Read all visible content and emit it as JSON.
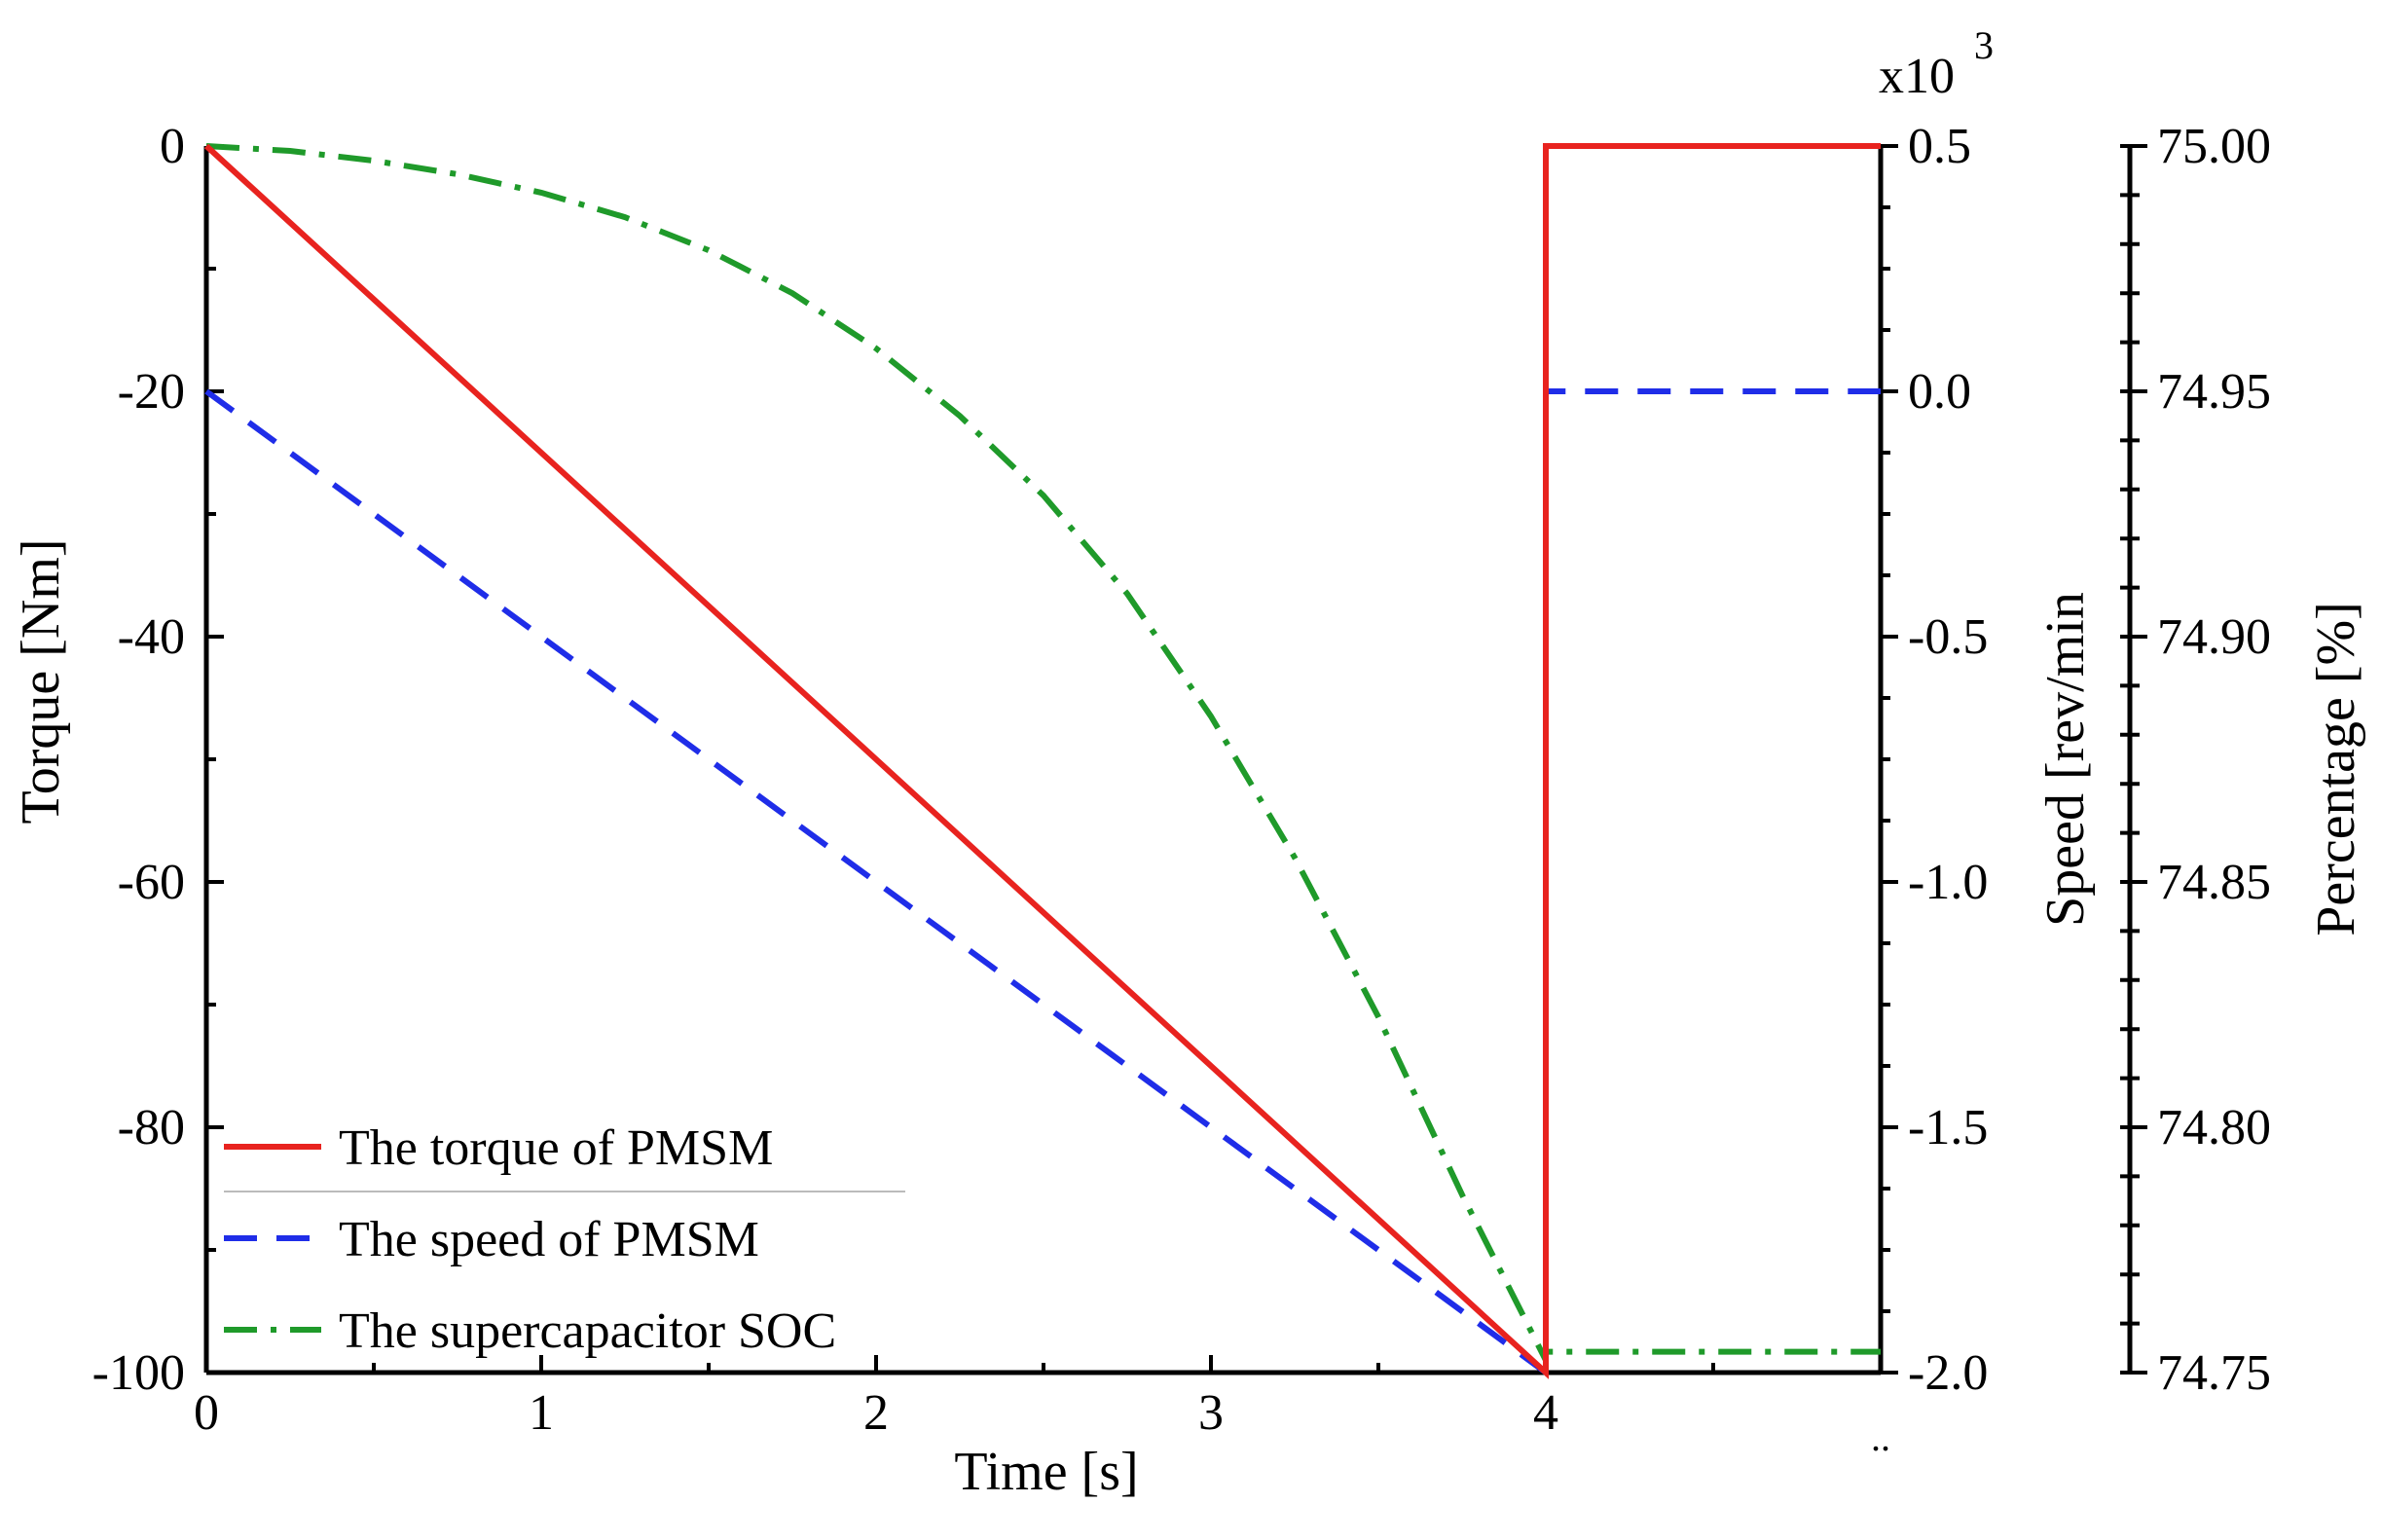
{
  "chart_data": {
    "type": "line",
    "title": "",
    "xlabel": "Time [s]",
    "xlim": [
      0,
      5
    ],
    "xticks": [
      0,
      1,
      2,
      3,
      4
    ],
    "x_partial_tick_label": "..",
    "axes": {
      "torque": {
        "label": "Torque [Nm]",
        "ylim": [
          -100,
          0
        ],
        "ticks": [
          0,
          -20,
          -40,
          -60,
          -80,
          -100
        ],
        "tick_labels": [
          "0",
          "-20",
          "-40",
          "-60",
          "-80",
          "-100"
        ]
      },
      "speed": {
        "label": "Speed [rev/min",
        "multiplier_label": "x10",
        "multiplier_exponent": "3",
        "ylim": [
          -2.0,
          0.5
        ],
        "ticks": [
          0.5,
          0.0,
          -0.5,
          -1.0,
          -1.5,
          -2.0
        ],
        "tick_labels": [
          "0.5",
          "0.0",
          "-0.5",
          "-1.0",
          "-1.5",
          "-2.0"
        ]
      },
      "percentage": {
        "label": "Percentage [%]",
        "ylim": [
          74.75,
          75.0
        ],
        "ticks": [
          75.0,
          74.95,
          74.9,
          74.85,
          74.8,
          74.75
        ],
        "tick_labels": [
          "75.00",
          "74.95",
          "74.90",
          "74.85",
          "74.80",
          "74.75"
        ]
      }
    },
    "series": [
      {
        "name": "The torque of PMSM",
        "axis": "torque",
        "color": "#e8231f",
        "style": "solid",
        "x": [
          0,
          4,
          4,
          5
        ],
        "y": [
          0,
          -100,
          0,
          0
        ]
      },
      {
        "name": "The speed of PMSM",
        "axis": "speed",
        "color": "#1f2de8",
        "style": "dashed",
        "x": [
          0,
          4,
          4,
          5
        ],
        "y": [
          -0.0,
          -2.0,
          0.0,
          0.0
        ]
      },
      {
        "name": "The supercapacitor SOC",
        "axis": "torque",
        "color": "#1f9a2a",
        "style": "dashdot",
        "x": [
          0,
          0.25,
          0.5,
          0.75,
          1.0,
          1.25,
          1.5,
          1.75,
          2.0,
          2.25,
          2.5,
          2.75,
          3.0,
          3.25,
          3.5,
          3.75,
          4.0,
          4.0,
          5.0
        ],
        "y": [
          0,
          -0.4,
          -1.2,
          -2.3,
          -3.8,
          -5.8,
          -8.5,
          -12.0,
          -16.5,
          -22.0,
          -28.5,
          -36.5,
          -46.5,
          -58.0,
          -71.0,
          -85.5,
          -99.0,
          -98.3,
          -98.3
        ]
      }
    ],
    "legend": {
      "position": "lower-left",
      "items": [
        "The torque of PMSM",
        "The speed of PMSM",
        "The supercapacitor SOC"
      ]
    }
  }
}
